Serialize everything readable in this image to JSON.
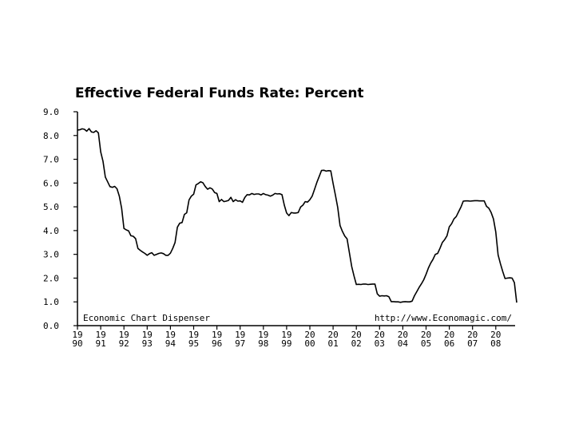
{
  "chart_data": {
    "type": "line",
    "title": "Effective Federal Funds Rate: Percent",
    "xlabel": "",
    "ylabel": "",
    "ylim": [
      0,
      9
    ],
    "xlim": [
      1990,
      2009
    ],
    "grid": false,
    "y_ticks": [
      "9.0",
      "8.0",
      "7.0",
      "6.0",
      "5.0",
      "4.0",
      "3.0",
      "2.0",
      "1.0",
      "0.0"
    ],
    "x_ticks": [
      {
        "top": "19",
        "bottom": "90",
        "year": 1990
      },
      {
        "top": "19",
        "bottom": "91",
        "year": 1991
      },
      {
        "top": "19",
        "bottom": "92",
        "year": 1992
      },
      {
        "top": "19",
        "bottom": "93",
        "year": 1993
      },
      {
        "top": "19",
        "bottom": "94",
        "year": 1994
      },
      {
        "top": "19",
        "bottom": "95",
        "year": 1995
      },
      {
        "top": "19",
        "bottom": "96",
        "year": 1996
      },
      {
        "top": "19",
        "bottom": "97",
        "year": 1997
      },
      {
        "top": "19",
        "bottom": "98",
        "year": 1998
      },
      {
        "top": "19",
        "bottom": "99",
        "year": 1999
      },
      {
        "top": "20",
        "bottom": "00",
        "year": 2000
      },
      {
        "top": "20",
        "bottom": "01",
        "year": 2001
      },
      {
        "top": "20",
        "bottom": "02",
        "year": 2002
      },
      {
        "top": "20",
        "bottom": "03",
        "year": 2003
      },
      {
        "top": "20",
        "bottom": "04",
        "year": 2004
      },
      {
        "top": "20",
        "bottom": "05",
        "year": 2005
      },
      {
        "top": "20",
        "bottom": "06",
        "year": 2006
      },
      {
        "top": "20",
        "bottom": "07",
        "year": 2007
      },
      {
        "top": "20",
        "bottom": "08",
        "year": 2008
      }
    ],
    "annotations": {
      "left": "Economic Chart Dispenser",
      "right": "http://www.Economagic.com/"
    },
    "series": [
      {
        "color": "#000000",
        "points": [
          [
            1990.0,
            8.23
          ],
          [
            1990.1,
            8.24
          ],
          [
            1990.2,
            8.28
          ],
          [
            1990.3,
            8.26
          ],
          [
            1990.4,
            8.18
          ],
          [
            1990.5,
            8.29
          ],
          [
            1990.6,
            8.15
          ],
          [
            1990.7,
            8.13
          ],
          [
            1990.8,
            8.2
          ],
          [
            1990.9,
            8.11
          ],
          [
            1991.0,
            7.31
          ],
          [
            1991.1,
            6.91
          ],
          [
            1991.2,
            6.25
          ],
          [
            1991.3,
            6.05
          ],
          [
            1991.4,
            5.85
          ],
          [
            1991.5,
            5.82
          ],
          [
            1991.6,
            5.86
          ],
          [
            1991.7,
            5.76
          ],
          [
            1991.8,
            5.45
          ],
          [
            1991.9,
            4.94
          ],
          [
            1992.0,
            4.09
          ],
          [
            1992.1,
            4.03
          ],
          [
            1992.2,
            3.99
          ],
          [
            1992.3,
            3.78
          ],
          [
            1992.4,
            3.76
          ],
          [
            1992.5,
            3.66
          ],
          [
            1992.6,
            3.25
          ],
          [
            1992.7,
            3.17
          ],
          [
            1992.8,
            3.1
          ],
          [
            1992.9,
            3.04
          ],
          [
            1993.0,
            2.96
          ],
          [
            1993.1,
            3.03
          ],
          [
            1993.2,
            3.07
          ],
          [
            1993.3,
            2.96
          ],
          [
            1993.4,
            3.0
          ],
          [
            1993.5,
            3.04
          ],
          [
            1993.6,
            3.06
          ],
          [
            1993.7,
            3.03
          ],
          [
            1993.8,
            2.96
          ],
          [
            1993.9,
            2.96
          ],
          [
            1994.0,
            3.05
          ],
          [
            1994.1,
            3.25
          ],
          [
            1994.2,
            3.5
          ],
          [
            1994.3,
            4.14
          ],
          [
            1994.4,
            4.31
          ],
          [
            1994.5,
            4.34
          ],
          [
            1994.6,
            4.68
          ],
          [
            1994.7,
            4.75
          ],
          [
            1994.8,
            5.29
          ],
          [
            1994.9,
            5.45
          ],
          [
            1995.0,
            5.53
          ],
          [
            1995.1,
            5.92
          ],
          [
            1995.2,
            5.98
          ],
          [
            1995.3,
            6.05
          ],
          [
            1995.4,
            6.01
          ],
          [
            1995.5,
            5.85
          ],
          [
            1995.6,
            5.74
          ],
          [
            1995.7,
            5.8
          ],
          [
            1995.8,
            5.75
          ],
          [
            1995.9,
            5.6
          ],
          [
            1996.0,
            5.56
          ],
          [
            1996.1,
            5.22
          ],
          [
            1996.2,
            5.31
          ],
          [
            1996.3,
            5.22
          ],
          [
            1996.4,
            5.24
          ],
          [
            1996.5,
            5.27
          ],
          [
            1996.6,
            5.4
          ],
          [
            1996.7,
            5.22
          ],
          [
            1996.8,
            5.3
          ],
          [
            1996.9,
            5.24
          ],
          [
            1997.0,
            5.25
          ],
          [
            1997.1,
            5.19
          ],
          [
            1997.2,
            5.39
          ],
          [
            1997.3,
            5.51
          ],
          [
            1997.4,
            5.5
          ],
          [
            1997.5,
            5.56
          ],
          [
            1997.6,
            5.52
          ],
          [
            1997.7,
            5.54
          ],
          [
            1997.8,
            5.54
          ],
          [
            1997.9,
            5.5
          ],
          [
            1998.0,
            5.56
          ],
          [
            1998.1,
            5.51
          ],
          [
            1998.2,
            5.49
          ],
          [
            1998.3,
            5.45
          ],
          [
            1998.4,
            5.49
          ],
          [
            1998.5,
            5.56
          ],
          [
            1998.6,
            5.54
          ],
          [
            1998.7,
            5.55
          ],
          [
            1998.8,
            5.51
          ],
          [
            1998.9,
            5.07
          ],
          [
            1999.0,
            4.74
          ],
          [
            1999.1,
            4.63
          ],
          [
            1999.2,
            4.76
          ],
          [
            1999.3,
            4.74
          ],
          [
            1999.4,
            4.74
          ],
          [
            1999.5,
            4.76
          ],
          [
            1999.6,
            4.99
          ],
          [
            1999.7,
            5.07
          ],
          [
            1999.8,
            5.22
          ],
          [
            1999.9,
            5.2
          ],
          [
            2000.0,
            5.3
          ],
          [
            2000.1,
            5.45
          ],
          [
            2000.2,
            5.73
          ],
          [
            2000.3,
            6.02
          ],
          [
            2000.4,
            6.27
          ],
          [
            2000.5,
            6.53
          ],
          [
            2000.6,
            6.54
          ],
          [
            2000.7,
            6.5
          ],
          [
            2000.8,
            6.52
          ],
          [
            2000.9,
            6.51
          ],
          [
            2001.0,
            5.98
          ],
          [
            2001.1,
            5.49
          ],
          [
            2001.2,
            4.97
          ],
          [
            2001.3,
            4.21
          ],
          [
            2001.4,
            3.97
          ],
          [
            2001.5,
            3.77
          ],
          [
            2001.6,
            3.65
          ],
          [
            2001.7,
            3.07
          ],
          [
            2001.8,
            2.49
          ],
          [
            2001.9,
            2.09
          ],
          [
            2002.0,
            1.73
          ],
          [
            2002.1,
            1.74
          ],
          [
            2002.2,
            1.73
          ],
          [
            2002.3,
            1.75
          ],
          [
            2002.4,
            1.75
          ],
          [
            2002.5,
            1.73
          ],
          [
            2002.6,
            1.74
          ],
          [
            2002.7,
            1.75
          ],
          [
            2002.8,
            1.75
          ],
          [
            2002.9,
            1.34
          ],
          [
            2003.0,
            1.24
          ],
          [
            2003.1,
            1.26
          ],
          [
            2003.2,
            1.25
          ],
          [
            2003.3,
            1.26
          ],
          [
            2003.4,
            1.22
          ],
          [
            2003.5,
            1.01
          ],
          [
            2003.6,
            1.01
          ],
          [
            2003.7,
            1.0
          ],
          [
            2003.8,
            1.0
          ],
          [
            2003.9,
            0.98
          ],
          [
            2004.0,
            1.0
          ],
          [
            2004.1,
            1.01
          ],
          [
            2004.2,
            1.0
          ],
          [
            2004.3,
            1.0
          ],
          [
            2004.4,
            1.03
          ],
          [
            2004.5,
            1.26
          ],
          [
            2004.6,
            1.43
          ],
          [
            2004.7,
            1.61
          ],
          [
            2004.8,
            1.76
          ],
          [
            2004.9,
            1.93
          ],
          [
            2005.0,
            2.16
          ],
          [
            2005.1,
            2.42
          ],
          [
            2005.2,
            2.63
          ],
          [
            2005.3,
            2.79
          ],
          [
            2005.4,
            3.0
          ],
          [
            2005.5,
            3.04
          ],
          [
            2005.6,
            3.26
          ],
          [
            2005.7,
            3.5
          ],
          [
            2005.8,
            3.62
          ],
          [
            2005.9,
            3.78
          ],
          [
            2006.0,
            4.16
          ],
          [
            2006.1,
            4.29
          ],
          [
            2006.2,
            4.49
          ],
          [
            2006.3,
            4.59
          ],
          [
            2006.4,
            4.79
          ],
          [
            2006.5,
            4.99
          ],
          [
            2006.6,
            5.24
          ],
          [
            2006.7,
            5.25
          ],
          [
            2006.8,
            5.25
          ],
          [
            2006.9,
            5.24
          ],
          [
            2007.0,
            5.25
          ],
          [
            2007.1,
            5.26
          ],
          [
            2007.2,
            5.26
          ],
          [
            2007.3,
            5.25
          ],
          [
            2007.4,
            5.25
          ],
          [
            2007.5,
            5.25
          ],
          [
            2007.6,
            5.02
          ],
          [
            2007.7,
            4.94
          ],
          [
            2007.8,
            4.76
          ],
          [
            2007.9,
            4.49
          ],
          [
            2008.0,
            3.94
          ],
          [
            2008.1,
            2.98
          ],
          [
            2008.2,
            2.61
          ],
          [
            2008.3,
            2.28
          ],
          [
            2008.4,
            1.98
          ],
          [
            2008.5,
            2.0
          ],
          [
            2008.6,
            2.01
          ],
          [
            2008.7,
            2.0
          ],
          [
            2008.8,
            1.81
          ],
          [
            2008.9,
            0.97
          ]
        ]
      }
    ]
  }
}
